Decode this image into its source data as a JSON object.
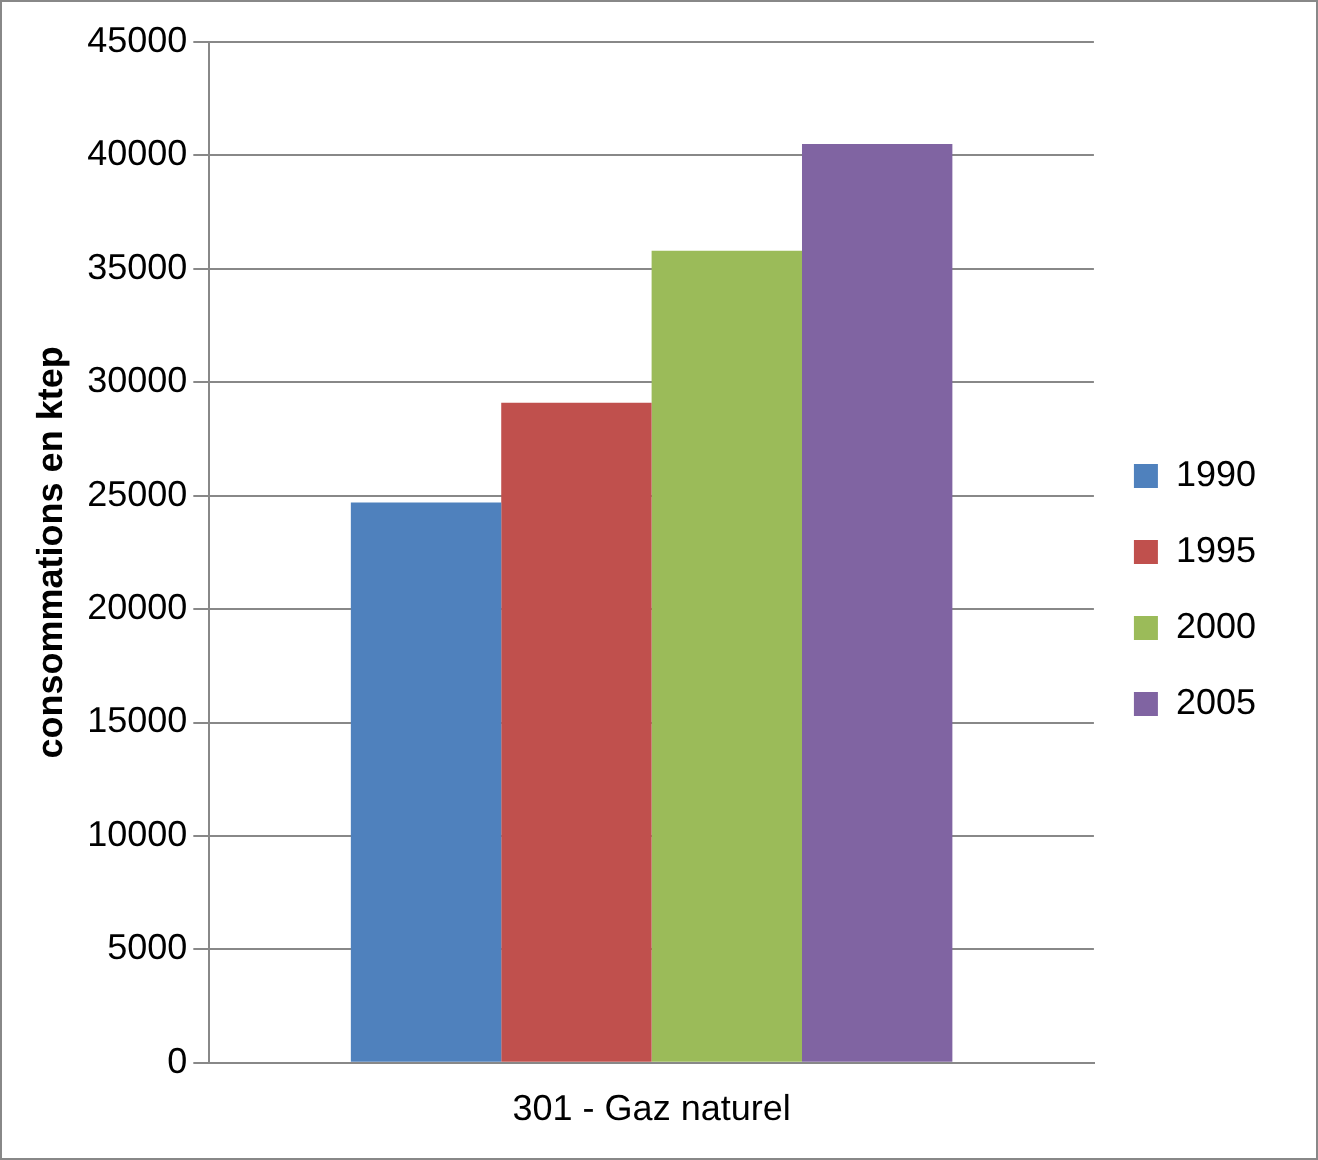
{
  "chart_data": {
    "type": "bar",
    "ylabel": "consommations en ktep",
    "categories": [
      "301 - Gaz naturel"
    ],
    "series": [
      {
        "name": "1990",
        "color": "#4f81bd",
        "values": [
          24700
        ]
      },
      {
        "name": "1995",
        "color": "#c0504d",
        "values": [
          29100
        ]
      },
      {
        "name": "2000",
        "color": "#9bbb59",
        "values": [
          35800
        ]
      },
      {
        "name": "2005",
        "color": "#8064a2",
        "values": [
          40500
        ]
      }
    ],
    "ylim": [
      0,
      45000
    ],
    "yticks": [
      0,
      5000,
      10000,
      15000,
      20000,
      25000,
      30000,
      35000,
      40000,
      45000
    ],
    "grid": "y",
    "legend": "right"
  }
}
